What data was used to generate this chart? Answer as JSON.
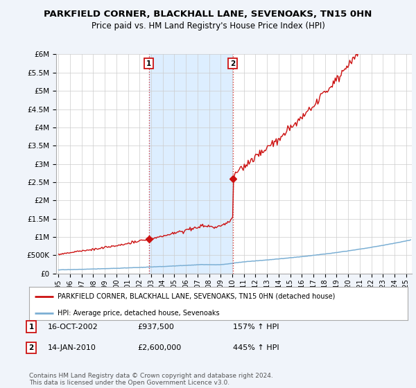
{
  "title": "PARKFIELD CORNER, BLACKHALL LANE, SEVENOAKS, TN15 0HN",
  "subtitle": "Price paid vs. HM Land Registry's House Price Index (HPI)",
  "ylim": [
    0,
    6000000
  ],
  "yticks": [
    0,
    500000,
    1000000,
    1500000,
    2000000,
    2500000,
    3000000,
    3500000,
    4000000,
    4500000,
    5000000,
    5500000,
    6000000
  ],
  "ytick_labels": [
    "£0",
    "£500K",
    "£1M",
    "£1.5M",
    "£2M",
    "£2.5M",
    "£3M",
    "£3.5M",
    "£4M",
    "£4.5M",
    "£5M",
    "£5.5M",
    "£6M"
  ],
  "xlim_start": 1994.8,
  "xlim_end": 2025.5,
  "hpi_color": "#7bafd4",
  "price_color": "#cc1111",
  "shade_color": "#ddeeff",
  "sale1_x": 2002.79,
  "sale1_y": 937500,
  "sale2_x": 2010.04,
  "sale2_y": 2600000,
  "legend_label_red": "PARKFIELD CORNER, BLACKHALL LANE, SEVENOAKS, TN15 0HN (detached house)",
  "legend_label_blue": "HPI: Average price, detached house, Sevenoaks",
  "sale1_date": "16-OCT-2002",
  "sale1_price": "£937,500",
  "sale1_hpi": "157% ↑ HPI",
  "sale2_date": "14-JAN-2010",
  "sale2_price": "£2,600,000",
  "sale2_hpi": "445% ↑ HPI",
  "footer": "Contains HM Land Registry data © Crown copyright and database right 2024.\nThis data is licensed under the Open Government Licence v3.0.",
  "bg_color": "#f0f4fa",
  "plot_bg": "#ffffff",
  "grid_color": "#cccccc"
}
